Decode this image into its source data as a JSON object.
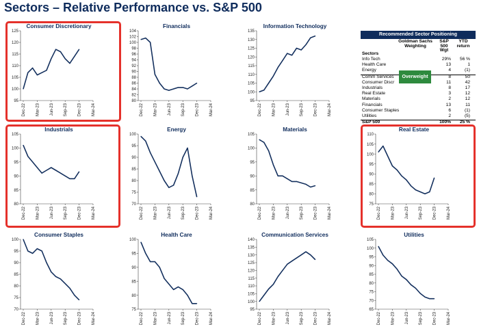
{
  "title": "Sectors – Relative Performance vs. S&P 500",
  "x_ticks": [
    "Dec-22",
    "Mar-23",
    "Jun-23",
    "Sep-23",
    "Dec-23",
    "Mar-24"
  ],
  "colors": {
    "line": "#14305e",
    "title": "#0f2c5c",
    "highlight": "#e5312b",
    "overweight": "#2e8a3e"
  },
  "chart_data": [
    {
      "type": "line",
      "title": "Consumer Discretionary",
      "highlighted": true,
      "ylim": [
        95,
        125
      ],
      "yticks": [
        95,
        100,
        105,
        110,
        115,
        120,
        125
      ],
      "x": [
        "Dec-22",
        "Jan-23",
        "Feb-23",
        "Mar-23",
        "Apr-23",
        "May-23",
        "Jun-23",
        "Jul-23",
        "Aug-23",
        "Sep-23",
        "Oct-23",
        "Nov-23",
        "Dec-23"
      ],
      "values": [
        100,
        107,
        109,
        106,
        107,
        108,
        113,
        117,
        116,
        113,
        111,
        114,
        117
      ]
    },
    {
      "type": "line",
      "title": "Financials",
      "highlighted": false,
      "ylim": [
        80,
        104
      ],
      "yticks": [
        80,
        82,
        84,
        86,
        88,
        90,
        92,
        94,
        96,
        98,
        100,
        102,
        104
      ],
      "x": [
        "Dec-22",
        "Jan-23",
        "Feb-23",
        "Mar-23",
        "Apr-23",
        "May-23",
        "Jun-23",
        "Jul-23",
        "Aug-23",
        "Sep-23",
        "Oct-23",
        "Nov-23",
        "Dec-23"
      ],
      "values": [
        101,
        101.5,
        100,
        89,
        86,
        84,
        83.5,
        84,
        84.5,
        84.5,
        84,
        85,
        86
      ]
    },
    {
      "type": "line",
      "title": "Information Technology",
      "highlighted": false,
      "ylim": [
        95,
        135
      ],
      "yticks": [
        95,
        100,
        105,
        110,
        115,
        120,
        125,
        130,
        135
      ],
      "x": [
        "Dec-22",
        "Jan-23",
        "Feb-23",
        "Mar-23",
        "Apr-23",
        "May-23",
        "Jun-23",
        "Jul-23",
        "Aug-23",
        "Sep-23",
        "Oct-23",
        "Nov-23",
        "Dec-23"
      ],
      "values": [
        100,
        101,
        105,
        109,
        114,
        118,
        122,
        121,
        125,
        124,
        127,
        131,
        132
      ]
    },
    {
      "type": "line",
      "title": "Industrials",
      "highlighted": true,
      "ylim": [
        80,
        105
      ],
      "yticks": [
        80,
        85,
        90,
        95,
        100,
        105
      ],
      "x": [
        "Dec-22",
        "Jan-23",
        "Feb-23",
        "Mar-23",
        "Apr-23",
        "May-23",
        "Jun-23",
        "Jul-23",
        "Aug-23",
        "Sep-23",
        "Oct-23",
        "Nov-23",
        "Dec-23"
      ],
      "values": [
        101,
        97,
        95,
        93,
        91,
        92,
        93,
        92,
        91,
        90,
        89,
        89,
        91.5
      ]
    },
    {
      "type": "line",
      "title": "Energy",
      "highlighted": false,
      "ylim": [
        70,
        100
      ],
      "yticks": [
        70,
        75,
        80,
        85,
        90,
        95,
        100
      ],
      "x": [
        "Dec-22",
        "Jan-23",
        "Feb-23",
        "Mar-23",
        "Apr-23",
        "May-23",
        "Jun-23",
        "Jul-23",
        "Aug-23",
        "Sep-23",
        "Oct-23",
        "Nov-23",
        "Dec-23"
      ],
      "values": [
        99,
        97,
        92,
        88,
        84,
        80,
        77,
        78,
        83,
        90,
        94,
        82,
        73
      ]
    },
    {
      "type": "line",
      "title": "Materials",
      "highlighted": false,
      "ylim": [
        80,
        105
      ],
      "yticks": [
        80,
        85,
        90,
        95,
        100,
        105
      ],
      "x": [
        "Dec-22",
        "Jan-23",
        "Feb-23",
        "Mar-23",
        "Apr-23",
        "May-23",
        "Jun-23",
        "Jul-23",
        "Aug-23",
        "Sep-23",
        "Oct-23",
        "Nov-23",
        "Dec-23"
      ],
      "values": [
        103,
        102,
        99,
        94,
        90,
        90,
        89,
        88,
        88,
        87.5,
        87,
        86,
        86.5
      ]
    },
    {
      "type": "line",
      "title": "Real Estate",
      "highlighted": true,
      "ylim": [
        75,
        110
      ],
      "yticks": [
        75,
        80,
        85,
        90,
        95,
        100,
        105,
        110
      ],
      "x": [
        "Dec-22",
        "Jan-23",
        "Feb-23",
        "Mar-23",
        "Apr-23",
        "May-23",
        "Jun-23",
        "Jul-23",
        "Aug-23",
        "Sep-23",
        "Oct-23",
        "Nov-23",
        "Dec-23"
      ],
      "values": [
        101,
        104,
        99,
        94,
        92,
        89,
        87,
        84,
        82,
        81,
        80,
        81,
        88
      ]
    },
    {
      "type": "line",
      "title": "Consumer Staples",
      "highlighted": false,
      "ylim": [
        70,
        100
      ],
      "yticks": [
        70,
        75,
        80,
        85,
        90,
        95,
        100
      ],
      "x": [
        "Dec-22",
        "Jan-23",
        "Feb-23",
        "Mar-23",
        "Apr-23",
        "May-23",
        "Jun-23",
        "Jul-23",
        "Aug-23",
        "Sep-23",
        "Oct-23",
        "Nov-23",
        "Dec-23"
      ],
      "values": [
        100,
        95,
        94,
        96,
        95,
        90,
        86,
        84,
        83,
        81,
        79,
        76,
        74
      ]
    },
    {
      "type": "line",
      "title": "Health Care",
      "highlighted": false,
      "ylim": [
        75,
        100
      ],
      "yticks": [
        75,
        80,
        85,
        90,
        95,
        100
      ],
      "x": [
        "Dec-22",
        "Jan-23",
        "Feb-23",
        "Mar-23",
        "Apr-23",
        "May-23",
        "Jun-23",
        "Jul-23",
        "Aug-23",
        "Sep-23",
        "Oct-23",
        "Nov-23",
        "Dec-23"
      ],
      "values": [
        99,
        95,
        92,
        92,
        90,
        86,
        84,
        82,
        83,
        82,
        80,
        77,
        77
      ]
    },
    {
      "type": "line",
      "title": "Communication Services",
      "highlighted": false,
      "ylim": [
        95,
        140
      ],
      "yticks": [
        95,
        100,
        105,
        110,
        115,
        120,
        125,
        130,
        135,
        140
      ],
      "x": [
        "Dec-22",
        "Jan-23",
        "Feb-23",
        "Mar-23",
        "Apr-23",
        "May-23",
        "Jun-23",
        "Jul-23",
        "Aug-23",
        "Sep-23",
        "Oct-23",
        "Nov-23",
        "Dec-23"
      ],
      "values": [
        100,
        104,
        108,
        111,
        116,
        120,
        124,
        126,
        128,
        130,
        132,
        130,
        127
      ]
    },
    {
      "type": "line",
      "title": "Utilities",
      "highlighted": false,
      "ylim": [
        65,
        105
      ],
      "yticks": [
        65,
        70,
        75,
        80,
        85,
        90,
        95,
        100,
        105
      ],
      "x": [
        "Dec-22",
        "Jan-23",
        "Feb-23",
        "Mar-23",
        "Apr-23",
        "May-23",
        "Jun-23",
        "Jul-23",
        "Aug-23",
        "Sep-23",
        "Oct-23",
        "Nov-23",
        "Dec-23"
      ],
      "values": [
        101,
        96,
        93,
        91,
        88,
        84,
        82,
        79,
        77,
        74,
        72,
        71,
        71
      ]
    },
    {
      "type": "table",
      "title": "Recommended Sector Positioning",
      "header": {
        "col1": "Goldman Sachs Weighting",
        "col2": "S&P 500 Wgt",
        "col3": "YTD return",
        "col0": "Sectors"
      },
      "overweight_label": "Overweight",
      "groups": [
        [
          {
            "sector": "Info Tech",
            "wgt": "29%",
            "ytd": "56 %"
          },
          {
            "sector": "Health Care",
            "wgt": "13",
            "ytd": "1"
          },
          {
            "sector": "Energy",
            "wgt": "4",
            "ytd": "(1)"
          }
        ],
        [
          {
            "sector": "Comm Services",
            "wgt": "8",
            "ytd": "50"
          },
          {
            "sector": "Consumer Discr",
            "wgt": "11",
            "ytd": "42"
          },
          {
            "sector": "Industrials",
            "wgt": "8",
            "ytd": "17"
          },
          {
            "sector": "Real Estate",
            "wgt": "3",
            "ytd": "12"
          },
          {
            "sector": "Materials",
            "wgt": "2",
            "ytd": "12"
          },
          {
            "sector": "Financials",
            "wgt": "13",
            "ytd": "11"
          },
          {
            "sector": "Consumer Staples",
            "wgt": "6",
            "ytd": "(1)"
          },
          {
            "sector": "Utilities",
            "wgt": "2",
            "ytd": "(5)"
          }
        ]
      ],
      "total": {
        "sector": "S&P 500",
        "wgt": "100%",
        "ytd": "25 %"
      }
    }
  ]
}
